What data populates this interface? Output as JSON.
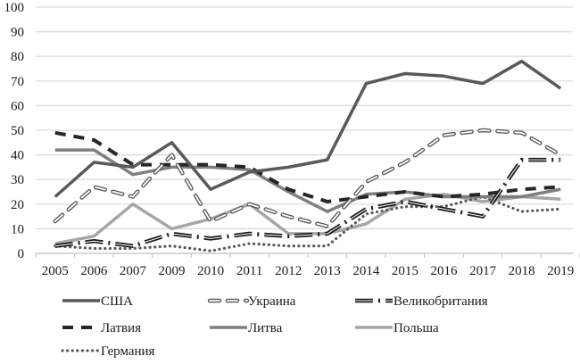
{
  "chart_data": {
    "type": "line",
    "title": "",
    "xlabel": "",
    "ylabel": "",
    "ylim": [
      0,
      100
    ],
    "yticks": [
      0,
      10,
      20,
      30,
      40,
      50,
      60,
      70,
      80,
      90,
      100
    ],
    "grid": true,
    "legend_placement": "bottom",
    "categories": [
      "2005",
      "2006",
      "2007",
      "2009",
      "2010",
      "2011",
      "2012",
      "2013",
      "2014",
      "2015",
      "2016",
      "2017",
      "2018",
      "2019"
    ],
    "series": [
      {
        "name": "США",
        "style": "solid",
        "color": "#595959",
        "values": [
          23,
          37,
          35,
          45,
          26,
          33,
          35,
          38,
          69,
          73,
          72,
          69,
          78,
          67
        ]
      },
      {
        "name": "Украина",
        "style": "outlined-dash",
        "color": "#595959",
        "values": [
          13,
          27,
          23,
          40,
          13,
          20,
          15,
          11,
          29,
          37,
          48,
          50,
          49,
          40
        ]
      },
      {
        "name": "Великобритания",
        "style": "double-long-dash-dot",
        "color": "#1a1a1a",
        "values": [
          3,
          5,
          3,
          8,
          6,
          8,
          7,
          8,
          18,
          21,
          18,
          15,
          38,
          38
        ]
      },
      {
        "name": "Латвия",
        "style": "dash",
        "color": "#262626",
        "values": [
          49,
          46,
          36,
          36,
          36,
          35,
          26,
          21,
          23,
          25,
          23,
          24,
          26,
          27
        ]
      },
      {
        "name": "Литва",
        "style": "solid",
        "color": "#7f7f7f",
        "values": [
          42,
          42,
          32,
          35,
          35,
          34,
          25,
          17,
          24,
          25,
          23,
          23,
          23,
          26
        ]
      },
      {
        "name": "Польша",
        "style": "solid",
        "color": "#a6a6a6",
        "values": [
          4,
          7,
          20,
          10,
          14,
          20,
          8,
          8,
          12,
          22,
          24,
          21,
          23,
          22
        ]
      },
      {
        "name": "Германия",
        "style": "dotted",
        "color": "#595959",
        "values": [
          3,
          2,
          2,
          3,
          1,
          4,
          3,
          3,
          16,
          19,
          19,
          23,
          17,
          18
        ]
      }
    ]
  }
}
